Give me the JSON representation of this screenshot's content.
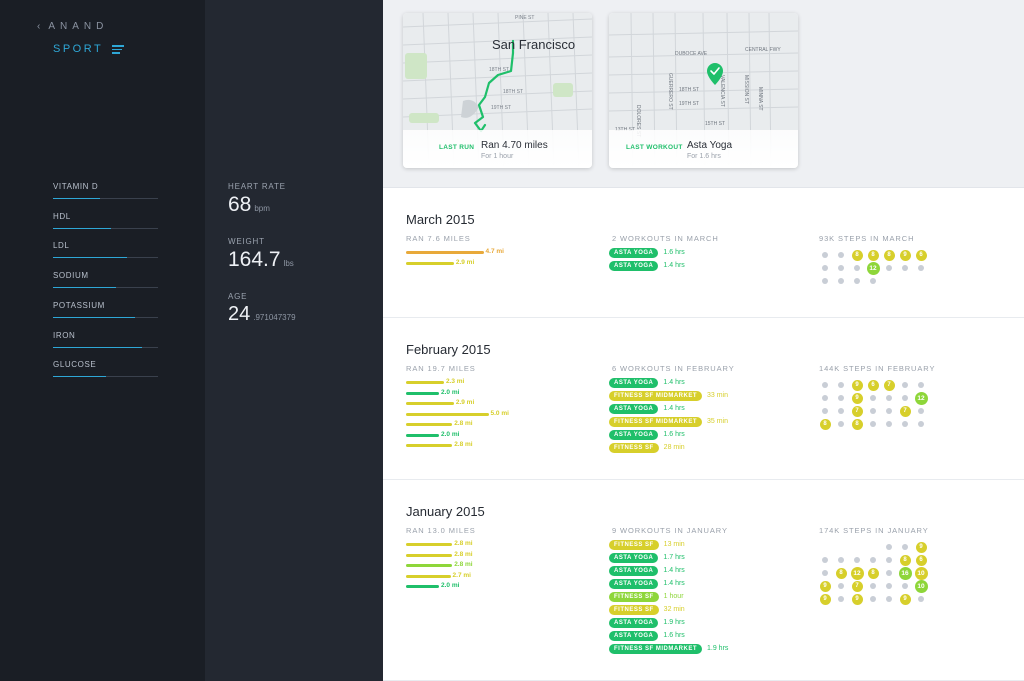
{
  "user": {
    "name": "ANAND",
    "section": "SPORT"
  },
  "icons": {
    "back": "chevron-left-icon",
    "menu": "menu-lines-icon",
    "check": "check-icon"
  },
  "colors": {
    "accent": "#2ea7d6",
    "green": "#1fbf6a",
    "lime": "#8ed63a",
    "yellow": "#d7cf2b",
    "orange": "#e8a93a",
    "grey_dot": "#c9ced6"
  },
  "vitals": [
    {
      "label": "VITAMIN D",
      "level": 0.45
    },
    {
      "label": "HDL",
      "level": 0.55
    },
    {
      "label": "LDL",
      "level": 0.7
    },
    {
      "label": "SODIUM",
      "level": 0.6
    },
    {
      "label": "POTASSIUM",
      "level": 0.78
    },
    {
      "label": "IRON",
      "level": 0.85
    },
    {
      "label": "GLUCOSE",
      "level": 0.5
    }
  ],
  "stats": {
    "heart_rate": {
      "label": "HEART RATE",
      "value": "68",
      "unit": "bpm"
    },
    "weight": {
      "label": "WEIGHT",
      "value": "164.7",
      "unit": "lbs"
    },
    "age": {
      "label": "AGE",
      "value": "24",
      "unit": ".971047379"
    }
  },
  "cards": {
    "run": {
      "city": "San Francisco",
      "kicker": "LAST RUN",
      "title": "Ran 4.70 miles",
      "sub": "For 1 hour",
      "streets": [
        "PINE ST",
        "18TH ST",
        "18TH ST",
        "19TH ST"
      ]
    },
    "workout": {
      "kicker": "LAST WORKOUT",
      "title": "Asta Yoga",
      "sub": "For 1.6 hrs",
      "streets": [
        "DUBOCE AVE",
        "CENTRAL FWY",
        "18TH ST",
        "19TH ST",
        "15TH ST",
        "DOLORES ST",
        "GUERRERO ST",
        "VALENCIA ST",
        "MISSION ST",
        "MINNA ST",
        "13TH ST"
      ]
    }
  },
  "months": [
    {
      "title": "March 2015",
      "run_header": "RAN 7.6 MILES",
      "workout_header": "2 WORKOUTS IN MARCH",
      "steps_header": "93K STEPS IN MARCH",
      "runs": [
        {
          "miles": 4.7,
          "label": "4.7 mi",
          "color": "orange"
        },
        {
          "miles": 2.9,
          "label": "2.9 mi",
          "color": "yellow"
        }
      ],
      "workouts": [
        {
          "name": "ASTA YOGA",
          "duration": "1.6 hrs",
          "color": "green"
        },
        {
          "name": "ASTA YOGA",
          "duration": "1.4 hrs",
          "color": "green"
        }
      ],
      "steps": [
        [
          {
            "v": ""
          },
          {
            "v": ""
          },
          {
            "v": "8",
            "c": "yellow"
          },
          {
            "v": "8",
            "c": "yellow"
          },
          {
            "v": "8",
            "c": "yellow"
          },
          {
            "v": "9",
            "c": "yellow"
          },
          {
            "v": "6",
            "c": "yellow"
          }
        ],
        [
          {
            "v": ""
          },
          {
            "v": ""
          },
          {
            "v": ""
          },
          {
            "v": "12",
            "c": "lime"
          },
          {
            "v": ""
          },
          {
            "v": ""
          },
          {
            "v": ""
          }
        ],
        [
          {
            "v": ""
          },
          {
            "v": ""
          },
          {
            "v": ""
          },
          {
            "v": ""
          },
          null,
          null,
          null
        ]
      ]
    },
    {
      "title": "February 2015",
      "run_header": "RAN 19.7 MILES",
      "workout_header": "6 WORKOUTS IN FEBRUARY",
      "steps_header": "144K STEPS IN FEBRUARY",
      "runs": [
        {
          "miles": 2.3,
          "label": "2.3 mi",
          "color": "yellow"
        },
        {
          "miles": 2.0,
          "label": "2.0 mi",
          "color": "green"
        },
        {
          "miles": 2.9,
          "label": "2.9 mi",
          "color": "yellow"
        },
        {
          "miles": 5.0,
          "label": "5.0 mi",
          "color": "yellow"
        },
        {
          "miles": 2.8,
          "label": "2.8 mi",
          "color": "yellow"
        },
        {
          "miles": 2.0,
          "label": "2.0 mi",
          "color": "green"
        },
        {
          "miles": 2.8,
          "label": "2.8 mi",
          "color": "yellow"
        }
      ],
      "workouts": [
        {
          "name": "ASTA YOGA",
          "duration": "1.4 hrs",
          "color": "green"
        },
        {
          "name": "FITNESS SF MIDMARKET",
          "duration": "33 min",
          "color": "yellow"
        },
        {
          "name": "ASTA YOGA",
          "duration": "1.4 hrs",
          "color": "green"
        },
        {
          "name": "FITNESS SF MIDMARKET",
          "duration": "35 min",
          "color": "yellow"
        },
        {
          "name": "ASTA YOGA",
          "duration": "1.6 hrs",
          "color": "green"
        },
        {
          "name": "FITNESS SF",
          "duration": "28 min",
          "color": "yellow"
        }
      ],
      "steps": [
        [
          {
            "v": ""
          },
          {
            "v": ""
          },
          {
            "v": "9",
            "c": "yellow"
          },
          {
            "v": "6",
            "c": "yellow"
          },
          {
            "v": "7",
            "c": "yellow"
          },
          {
            "v": ""
          },
          {
            "v": ""
          }
        ],
        [
          {
            "v": ""
          },
          {
            "v": ""
          },
          {
            "v": "9",
            "c": "yellow"
          },
          {
            "v": ""
          },
          {
            "v": ""
          },
          {
            "v": ""
          },
          {
            "v": "12",
            "c": "lime"
          }
        ],
        [
          {
            "v": ""
          },
          {
            "v": ""
          },
          {
            "v": "7",
            "c": "yellow"
          },
          {
            "v": ""
          },
          {
            "v": ""
          },
          {
            "v": "7",
            "c": "yellow"
          },
          {
            "v": ""
          }
        ],
        [
          {
            "v": "8",
            "c": "yellow"
          },
          {
            "v": ""
          },
          {
            "v": "8",
            "c": "yellow"
          },
          {
            "v": ""
          },
          {
            "v": ""
          },
          {
            "v": ""
          },
          {
            "v": ""
          }
        ]
      ]
    },
    {
      "title": "January 2015",
      "run_header": "RAN 13.0 MILES",
      "workout_header": "9 WORKOUTS IN JANUARY",
      "steps_header": "174K STEPS IN JANUARY",
      "runs": [
        {
          "miles": 2.8,
          "label": "2.8 mi",
          "color": "yellow"
        },
        {
          "miles": 2.8,
          "label": "2.8 mi",
          "color": "yellow"
        },
        {
          "miles": 2.8,
          "label": "2.8 mi",
          "color": "lime"
        },
        {
          "miles": 2.7,
          "label": "2.7 mi",
          "color": "yellow"
        },
        {
          "miles": 2.0,
          "label": "2.0 mi",
          "color": "green"
        }
      ],
      "workouts": [
        {
          "name": "FITNESS SF",
          "duration": "13 min",
          "color": "yellow"
        },
        {
          "name": "ASTA YOGA",
          "duration": "1.7 hrs",
          "color": "green"
        },
        {
          "name": "ASTA YOGA",
          "duration": "1.4 hrs",
          "color": "green"
        },
        {
          "name": "ASTA YOGA",
          "duration": "1.4 hrs",
          "color": "green"
        },
        {
          "name": "FITNESS SF",
          "duration": "1 hour",
          "color": "lime"
        },
        {
          "name": "FITNESS SF",
          "duration": "32 min",
          "color": "yellow"
        },
        {
          "name": "ASTA YOGA",
          "duration": "1.9 hrs",
          "color": "green"
        },
        {
          "name": "ASTA YOGA",
          "duration": "1.6 hrs",
          "color": "green"
        },
        {
          "name": "FITNESS SF MIDMARKET",
          "duration": "1.9 hrs",
          "color": "green"
        }
      ],
      "steps": [
        [
          null,
          null,
          null,
          null,
          {
            "v": ""
          },
          {
            "v": ""
          },
          {
            "v": "9",
            "c": "yellow"
          }
        ],
        [
          {
            "v": ""
          },
          {
            "v": ""
          },
          {
            "v": ""
          },
          {
            "v": ""
          },
          {
            "v": ""
          },
          {
            "v": "8",
            "c": "yellow"
          },
          {
            "v": "6",
            "c": "yellow"
          }
        ],
        [
          {
            "v": ""
          },
          {
            "v": "8",
            "c": "yellow"
          },
          {
            "v": "12",
            "c": "yellow"
          },
          {
            "v": "8",
            "c": "yellow"
          },
          {
            "v": ""
          },
          {
            "v": "16",
            "c": "lime"
          },
          {
            "v": "10",
            "c": "yellow"
          }
        ],
        [
          {
            "v": "9",
            "c": "yellow"
          },
          {
            "v": ""
          },
          {
            "v": "7",
            "c": "yellow"
          },
          {
            "v": ""
          },
          {
            "v": ""
          },
          {
            "v": ""
          },
          {
            "v": "10",
            "c": "lime"
          }
        ],
        [
          {
            "v": "9",
            "c": "yellow"
          },
          {
            "v": ""
          },
          {
            "v": "9",
            "c": "yellow"
          },
          {
            "v": ""
          },
          {
            "v": ""
          },
          {
            "v": "9",
            "c": "yellow"
          },
          {
            "v": ""
          }
        ]
      ]
    }
  ]
}
